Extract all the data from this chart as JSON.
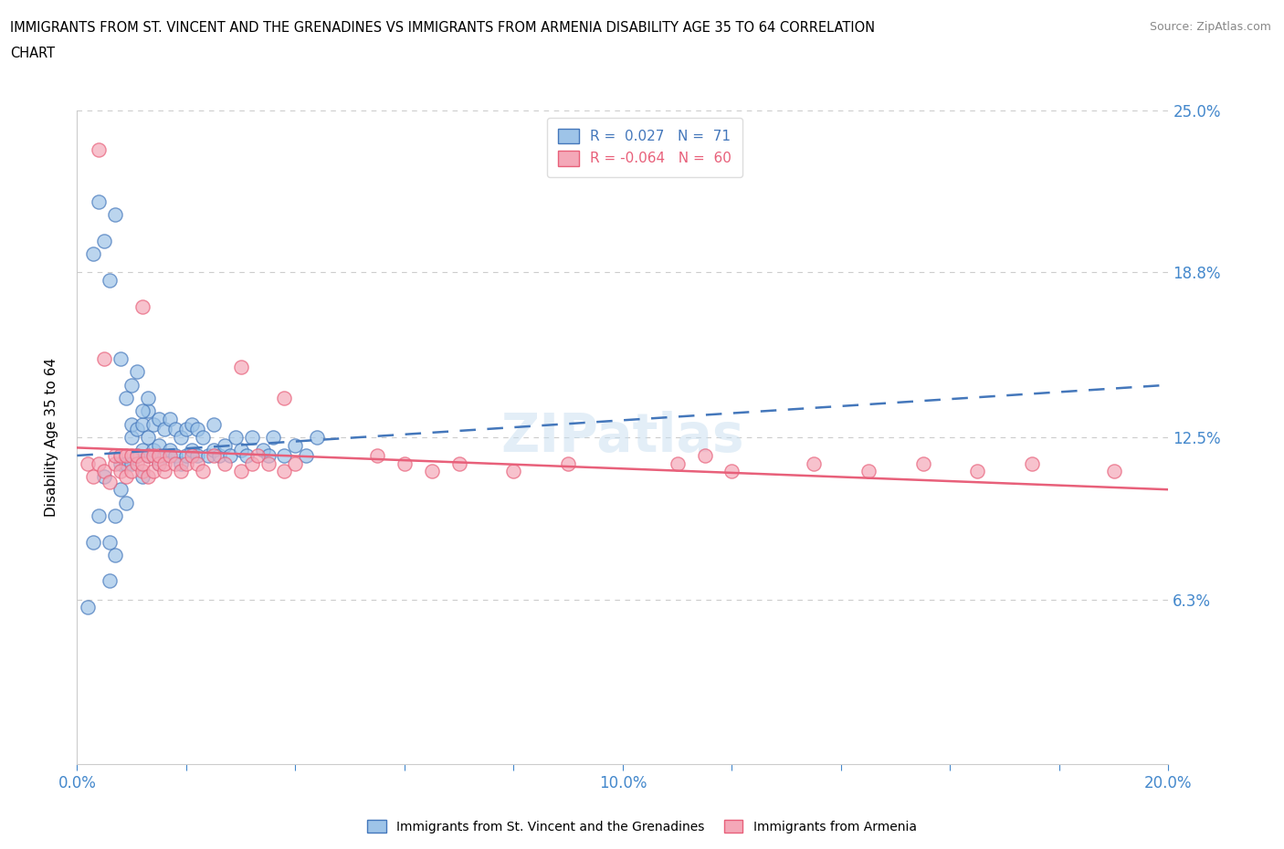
{
  "title_line1": "IMMIGRANTS FROM ST. VINCENT AND THE GRENADINES VS IMMIGRANTS FROM ARMENIA DISABILITY AGE 35 TO 64 CORRELATION",
  "title_line2": "CHART",
  "source_text": "Source: ZipAtlas.com",
  "ylabel": "Disability Age 35 to 64",
  "xlim": [
    0.0,
    0.2
  ],
  "ylim": [
    0.0,
    0.25
  ],
  "ytick_vals": [
    0.0,
    0.063,
    0.125,
    0.188,
    0.25
  ],
  "ytick_labels": [
    "",
    "6.3%",
    "12.5%",
    "18.8%",
    "25.0%"
  ],
  "xtick_vals": [
    0.0,
    0.02,
    0.04,
    0.06,
    0.08,
    0.1,
    0.12,
    0.14,
    0.16,
    0.18,
    0.2
  ],
  "xtick_labels": [
    "0.0%",
    "",
    "",
    "",
    "",
    "10.0%",
    "",
    "",
    "",
    "",
    "20.0%"
  ],
  "color_blue": "#9EC4E8",
  "color_pink": "#F4A8B8",
  "color_blue_line": "#4477BB",
  "color_pink_line": "#E8607A",
  "watermark": "ZIPatlas",
  "legend_label1": "R =  0.027   N =  71",
  "legend_label2": "R = -0.064   N =  60",
  "blue_x": [
    0.002,
    0.003,
    0.004,
    0.005,
    0.006,
    0.006,
    0.007,
    0.007,
    0.008,
    0.008,
    0.009,
    0.009,
    0.01,
    0.01,
    0.01,
    0.011,
    0.011,
    0.012,
    0.012,
    0.012,
    0.013,
    0.013,
    0.013,
    0.014,
    0.014,
    0.015,
    0.015,
    0.015,
    0.016,
    0.016,
    0.017,
    0.017,
    0.018,
    0.018,
    0.019,
    0.019,
    0.02,
    0.02,
    0.021,
    0.021,
    0.022,
    0.022,
    0.023,
    0.024,
    0.025,
    0.025,
    0.026,
    0.027,
    0.028,
    0.029,
    0.03,
    0.031,
    0.032,
    0.034,
    0.035,
    0.036,
    0.038,
    0.04,
    0.042,
    0.044,
    0.003,
    0.004,
    0.005,
    0.006,
    0.007,
    0.008,
    0.009,
    0.01,
    0.011,
    0.012,
    0.013
  ],
  "blue_y": [
    0.06,
    0.085,
    0.095,
    0.11,
    0.07,
    0.085,
    0.08,
    0.095,
    0.105,
    0.115,
    0.1,
    0.115,
    0.115,
    0.125,
    0.13,
    0.118,
    0.128,
    0.11,
    0.12,
    0.13,
    0.118,
    0.125,
    0.135,
    0.12,
    0.13,
    0.115,
    0.122,
    0.132,
    0.118,
    0.128,
    0.12,
    0.132,
    0.118,
    0.128,
    0.115,
    0.125,
    0.118,
    0.128,
    0.12,
    0.13,
    0.118,
    0.128,
    0.125,
    0.118,
    0.12,
    0.13,
    0.118,
    0.122,
    0.118,
    0.125,
    0.12,
    0.118,
    0.125,
    0.12,
    0.118,
    0.125,
    0.118,
    0.122,
    0.118,
    0.125,
    0.195,
    0.215,
    0.2,
    0.185,
    0.21,
    0.155,
    0.14,
    0.145,
    0.15,
    0.135,
    0.14
  ],
  "pink_x": [
    0.002,
    0.003,
    0.004,
    0.005,
    0.006,
    0.007,
    0.007,
    0.008,
    0.008,
    0.009,
    0.009,
    0.01,
    0.01,
    0.011,
    0.011,
    0.012,
    0.012,
    0.013,
    0.013,
    0.014,
    0.014,
    0.015,
    0.015,
    0.016,
    0.016,
    0.017,
    0.018,
    0.019,
    0.02,
    0.021,
    0.022,
    0.023,
    0.025,
    0.027,
    0.03,
    0.032,
    0.033,
    0.035,
    0.038,
    0.04,
    0.055,
    0.06,
    0.065,
    0.07,
    0.08,
    0.09,
    0.11,
    0.115,
    0.12,
    0.135,
    0.145,
    0.155,
    0.165,
    0.175,
    0.19,
    0.004,
    0.005,
    0.012,
    0.03,
    0.038
  ],
  "pink_y": [
    0.115,
    0.11,
    0.115,
    0.112,
    0.108,
    0.115,
    0.118,
    0.112,
    0.118,
    0.11,
    0.118,
    0.112,
    0.118,
    0.115,
    0.118,
    0.112,
    0.115,
    0.11,
    0.118,
    0.112,
    0.118,
    0.115,
    0.118,
    0.112,
    0.115,
    0.118,
    0.115,
    0.112,
    0.115,
    0.118,
    0.115,
    0.112,
    0.118,
    0.115,
    0.112,
    0.115,
    0.118,
    0.115,
    0.112,
    0.115,
    0.118,
    0.115,
    0.112,
    0.115,
    0.112,
    0.115,
    0.115,
    0.118,
    0.112,
    0.115,
    0.112,
    0.115,
    0.112,
    0.115,
    0.112,
    0.235,
    0.155,
    0.175,
    0.152,
    0.14
  ],
  "blue_trend_x": [
    0.0,
    0.2
  ],
  "blue_trend_y": [
    0.118,
    0.145
  ],
  "pink_trend_x": [
    0.0,
    0.2
  ],
  "pink_trend_y": [
    0.121,
    0.105
  ]
}
